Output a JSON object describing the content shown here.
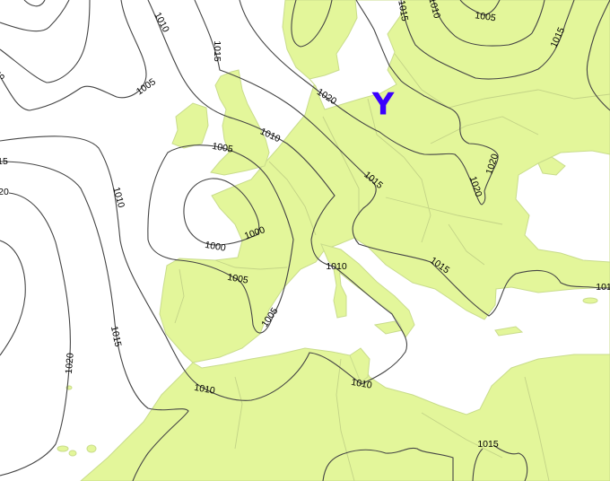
{
  "map": {
    "colors": {
      "land": "#e3f69a",
      "sea": "#ffffff",
      "isobar": "#454545",
      "pressure_symbol": "#3a00ff"
    },
    "pressure_symbol": "Y",
    "isobar_labels": [
      "1010",
      "1015",
      "1005",
      "1010",
      "1005",
      "1020",
      "1015",
      "1020",
      "1020",
      "1015",
      "1010",
      "1005",
      "1015",
      "1010",
      "1000",
      "1000",
      "1005",
      "1005",
      "1010",
      "1015",
      "1015",
      "1020",
      "1010",
      "1010",
      "1015",
      "101",
      "5",
      "15",
      "20"
    ]
  }
}
